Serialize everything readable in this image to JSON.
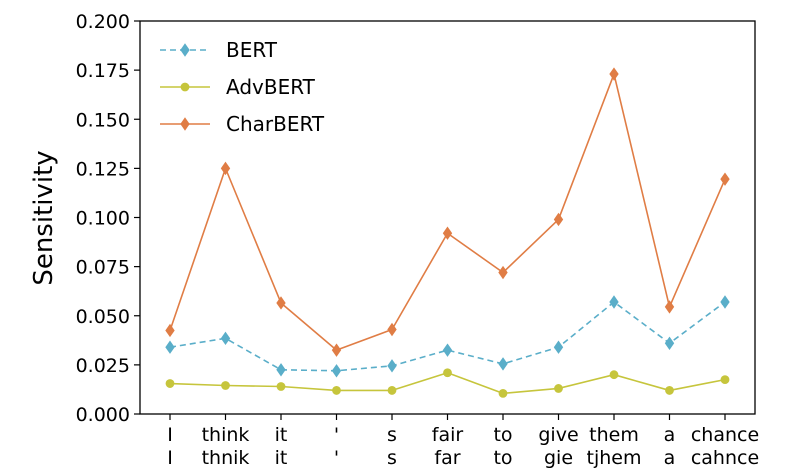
{
  "chart_data": {
    "type": "line",
    "title": "",
    "xlabel": "",
    "ylabel": "Sensitivity",
    "ylim": [
      0.0,
      0.2
    ],
    "yticks": [
      "0.000",
      "0.025",
      "0.050",
      "0.075",
      "0.100",
      "0.125",
      "0.150",
      "0.175",
      "0.200"
    ],
    "categories_top": [
      "I",
      "think",
      "it",
      "'",
      "s",
      "fair",
      "to",
      "give",
      "them",
      "a",
      "chance"
    ],
    "categories_bottom": [
      "I",
      "thnik",
      "it",
      "'",
      "s",
      "far",
      "to",
      "gie",
      "tjhem",
      "a",
      "cahnce"
    ],
    "legend_position": "upper-left",
    "grid": false,
    "series": [
      {
        "name": "BERT",
        "color": "#5aaec9",
        "line_style": "dashed",
        "marker": "diamond",
        "values": [
          0.034,
          0.0385,
          0.0225,
          0.022,
          0.0245,
          0.0325,
          0.0255,
          0.034,
          0.057,
          0.036,
          0.057
        ]
      },
      {
        "name": "AdvBERT",
        "color": "#c6c53c",
        "line_style": "solid",
        "marker": "circle",
        "values": [
          0.0155,
          0.0145,
          0.014,
          0.012,
          0.012,
          0.021,
          0.0105,
          0.013,
          0.02,
          0.012,
          0.0175
        ]
      },
      {
        "name": "CharBERT",
        "color": "#e07d45",
        "line_style": "solid",
        "marker": "diamond",
        "values": [
          0.0425,
          0.125,
          0.0565,
          0.0325,
          0.043,
          0.092,
          0.072,
          0.099,
          0.173,
          0.0545,
          0.1195
        ]
      }
    ]
  }
}
